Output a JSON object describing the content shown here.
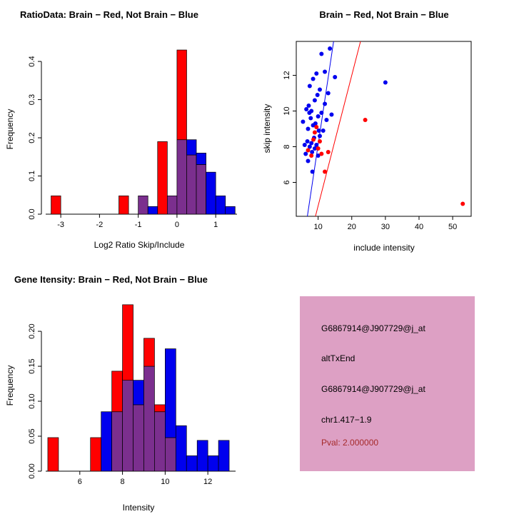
{
  "colors": {
    "red": "#FF0000",
    "blue": "#0000EE",
    "overlap": "#7B2F8E",
    "axis": "#000000",
    "text": "#000000",
    "pval": "#A52A2A",
    "info_bg": "#DDA0C4"
  },
  "chart_data": [
    {
      "type": "bar",
      "subtype": "overlaid-histogram",
      "title": "RatioData: Brain − Red, Not Brain − Blue",
      "xlabel": "Log2 Ratio Skip/Include",
      "ylabel": "Frequency",
      "xlim": [
        -3.5,
        1.55
      ],
      "ylim": [
        0,
        0.445
      ],
      "xticks": [
        -3,
        -2,
        -1,
        0,
        1
      ],
      "xtick_labels": [
        "-3",
        "-2",
        "-1",
        "0",
        "1"
      ],
      "yticks": [
        0,
        0.1,
        0.2,
        0.3,
        0.4
      ],
      "ytick_labels": [
        "0.0",
        "0.1",
        "0.2",
        "0.3",
        "0.4"
      ],
      "bin_width": 0.25,
      "bin_left_edges": [
        -3.25,
        -3.0,
        -2.75,
        -2.5,
        -2.25,
        -2.0,
        -1.75,
        -1.5,
        -1.25,
        -1.0,
        -0.75,
        -0.5,
        -0.25,
        0.0,
        0.25,
        0.5,
        0.75,
        1.0,
        1.25
      ],
      "series": [
        {
          "name": "Brain",
          "color_key": "red",
          "values": [
            0.048,
            0,
            0,
            0,
            0,
            0,
            0,
            0.048,
            0,
            0.048,
            0,
            0.19,
            0.048,
            0.43,
            0.155,
            0.13,
            0,
            0,
            0
          ]
        },
        {
          "name": "Not Brain",
          "color_key": "blue",
          "values": [
            0,
            0,
            0,
            0,
            0,
            0,
            0,
            0,
            0,
            0.048,
            0.02,
            0,
            0.048,
            0.195,
            0.195,
            0.16,
            0.11,
            0.048,
            0.02
          ]
        }
      ],
      "legend_note": "Brain = red, Not Brain = blue, overlap = purple",
      "grid": false
    },
    {
      "type": "scatter",
      "title": "Brain − Red, Not Brain − Blue",
      "xlabel": "include intensity",
      "ylabel": "skip intensity",
      "xlim": [
        3.5,
        55.5
      ],
      "ylim": [
        4.1,
        13.9
      ],
      "xticks": [
        10,
        20,
        30,
        40,
        50
      ],
      "yticks": [
        6,
        8,
        10,
        12
      ],
      "series": [
        {
          "name": "Not Brain",
          "color_key": "blue",
          "points": [
            [
              5.5,
              9.4
            ],
            [
              6,
              8.1
            ],
            [
              6.3,
              7.6
            ],
            [
              6.5,
              10.1
            ],
            [
              6.8,
              8.3
            ],
            [
              7,
              7.2
            ],
            [
              7,
              9.0
            ],
            [
              7.2,
              10.3
            ],
            [
              7.4,
              9.9
            ],
            [
              7.5,
              8.0
            ],
            [
              7.5,
              11.4
            ],
            [
              7.8,
              9.6
            ],
            [
              8,
              8.2
            ],
            [
              8,
              10.0
            ],
            [
              8.2,
              7.7
            ],
            [
              8.3,
              6.6
            ],
            [
              8.5,
              9.2
            ],
            [
              8.5,
              11.8
            ],
            [
              8.8,
              8.5
            ],
            [
              9,
              7.9
            ],
            [
              9,
              10.6
            ],
            [
              9.2,
              9.3
            ],
            [
              9.5,
              8.1
            ],
            [
              9.5,
              12.1
            ],
            [
              9.8,
              10.9
            ],
            [
              10,
              7.5
            ],
            [
              10,
              9.7
            ],
            [
              10.2,
              8.9
            ],
            [
              10.5,
              8.6
            ],
            [
              10.5,
              11.2
            ],
            [
              11,
              9.9
            ],
            [
              11,
              13.2
            ],
            [
              11.5,
              8.9
            ],
            [
              12,
              10.4
            ],
            [
              12,
              12.2
            ],
            [
              12.5,
              9.5
            ],
            [
              13,
              11.0
            ],
            [
              13.5,
              13.5
            ],
            [
              14,
              9.8
            ],
            [
              15,
              11.9
            ],
            [
              30,
              11.6
            ]
          ]
        },
        {
          "name": "Brain",
          "color_key": "red",
          "points": [
            [
              7,
              7.8
            ],
            [
              8,
              7.5
            ],
            [
              8.6,
              8.4
            ],
            [
              9,
              8.8
            ],
            [
              9.5,
              9.1
            ],
            [
              10,
              7.9
            ],
            [
              10.5,
              8.3
            ],
            [
              11,
              7.6
            ],
            [
              12,
              6.6
            ],
            [
              13,
              7.7
            ],
            [
              24,
              9.5
            ],
            [
              53,
              4.8
            ]
          ]
        }
      ],
      "lines": [
        {
          "color_key": "blue",
          "from": [
            6.8,
            4.1
          ],
          "to": [
            14.6,
            13.9
          ]
        },
        {
          "color_key": "red",
          "from": [
            9.2,
            4.1
          ],
          "to": [
            22.6,
            13.9
          ]
        }
      ],
      "grid": false
    },
    {
      "type": "bar",
      "subtype": "overlaid-histogram",
      "title": "Gene Itensity: Brain − Red, Not Brain − Blue",
      "xlabel": "Intensity",
      "ylabel": "Frequency",
      "xlim": [
        4.2,
        13.3
      ],
      "ylim": [
        0,
        0.245
      ],
      "xticks": [
        6,
        8,
        10,
        12
      ],
      "xtick_labels": [
        "6",
        "8",
        "10",
        "12"
      ],
      "yticks": [
        0,
        0.05,
        0.1,
        0.15,
        0.2
      ],
      "ytick_labels": [
        "0.00",
        "0.05",
        "0.10",
        "0.15",
        "0.20"
      ],
      "bin_width": 0.5,
      "bin_left_edges": [
        4.5,
        5.0,
        5.5,
        6.0,
        6.5,
        7.0,
        7.5,
        8.0,
        8.5,
        9.0,
        9.5,
        10.0,
        10.5,
        11.0,
        11.5,
        12.0,
        12.5
      ],
      "series": [
        {
          "name": "Brain",
          "color_key": "red",
          "values": [
            0.048,
            0,
            0,
            0,
            0.048,
            0,
            0.143,
            0.238,
            0.095,
            0.19,
            0.095,
            0.048,
            0,
            0,
            0,
            0,
            0
          ]
        },
        {
          "name": "Not Brain",
          "color_key": "blue",
          "values": [
            0,
            0,
            0,
            0,
            0,
            0.085,
            0.085,
            0.13,
            0.13,
            0.15,
            0.085,
            0.175,
            0.065,
            0.022,
            0.044,
            0.022,
            0.044
          ]
        }
      ],
      "legend_note": "Brain = red, Not Brain = blue, overlap = purple",
      "grid": false
    }
  ],
  "info_panel": {
    "lines": [
      {
        "text": "G6867914@J907729@j_at",
        "color": "text"
      },
      {
        "text": "altTxEnd",
        "color": "text"
      },
      {
        "text": "G6867914@J907729@j_at",
        "color": "text"
      },
      {
        "text": "chr1.417−1.9",
        "color": "text"
      },
      {
        "text": "Pval: 2.000000",
        "color": "pval"
      }
    ]
  }
}
